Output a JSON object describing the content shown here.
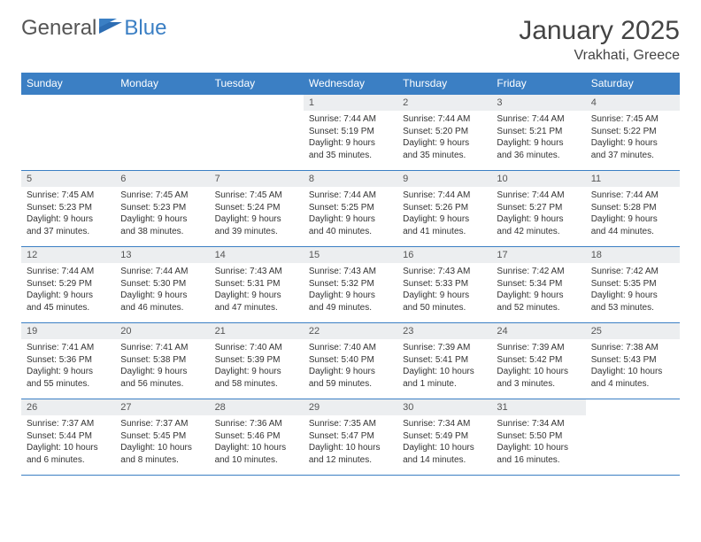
{
  "logo": {
    "general": "General",
    "blue": "Blue"
  },
  "title": "January 2025",
  "location": "Vrakhati, Greece",
  "colors": {
    "header_bg": "#3b7fc4",
    "daynum_bg": "#eceef0",
    "border": "#3b7fc4"
  },
  "day_headers": [
    "Sunday",
    "Monday",
    "Tuesday",
    "Wednesday",
    "Thursday",
    "Friday",
    "Saturday"
  ],
  "weeks": [
    [
      null,
      null,
      null,
      {
        "n": "1",
        "sunrise": "7:44 AM",
        "sunset": "5:19 PM",
        "dl1": "9 hours",
        "dl2": "and 35 minutes."
      },
      {
        "n": "2",
        "sunrise": "7:44 AM",
        "sunset": "5:20 PM",
        "dl1": "9 hours",
        "dl2": "and 35 minutes."
      },
      {
        "n": "3",
        "sunrise": "7:44 AM",
        "sunset": "5:21 PM",
        "dl1": "9 hours",
        "dl2": "and 36 minutes."
      },
      {
        "n": "4",
        "sunrise": "7:45 AM",
        "sunset": "5:22 PM",
        "dl1": "9 hours",
        "dl2": "and 37 minutes."
      }
    ],
    [
      {
        "n": "5",
        "sunrise": "7:45 AM",
        "sunset": "5:23 PM",
        "dl1": "9 hours",
        "dl2": "and 37 minutes."
      },
      {
        "n": "6",
        "sunrise": "7:45 AM",
        "sunset": "5:23 PM",
        "dl1": "9 hours",
        "dl2": "and 38 minutes."
      },
      {
        "n": "7",
        "sunrise": "7:45 AM",
        "sunset": "5:24 PM",
        "dl1": "9 hours",
        "dl2": "and 39 minutes."
      },
      {
        "n": "8",
        "sunrise": "7:44 AM",
        "sunset": "5:25 PM",
        "dl1": "9 hours",
        "dl2": "and 40 minutes."
      },
      {
        "n": "9",
        "sunrise": "7:44 AM",
        "sunset": "5:26 PM",
        "dl1": "9 hours",
        "dl2": "and 41 minutes."
      },
      {
        "n": "10",
        "sunrise": "7:44 AM",
        "sunset": "5:27 PM",
        "dl1": "9 hours",
        "dl2": "and 42 minutes."
      },
      {
        "n": "11",
        "sunrise": "7:44 AM",
        "sunset": "5:28 PM",
        "dl1": "9 hours",
        "dl2": "and 44 minutes."
      }
    ],
    [
      {
        "n": "12",
        "sunrise": "7:44 AM",
        "sunset": "5:29 PM",
        "dl1": "9 hours",
        "dl2": "and 45 minutes."
      },
      {
        "n": "13",
        "sunrise": "7:44 AM",
        "sunset": "5:30 PM",
        "dl1": "9 hours",
        "dl2": "and 46 minutes."
      },
      {
        "n": "14",
        "sunrise": "7:43 AM",
        "sunset": "5:31 PM",
        "dl1": "9 hours",
        "dl2": "and 47 minutes."
      },
      {
        "n": "15",
        "sunrise": "7:43 AM",
        "sunset": "5:32 PM",
        "dl1": "9 hours",
        "dl2": "and 49 minutes."
      },
      {
        "n": "16",
        "sunrise": "7:43 AM",
        "sunset": "5:33 PM",
        "dl1": "9 hours",
        "dl2": "and 50 minutes."
      },
      {
        "n": "17",
        "sunrise": "7:42 AM",
        "sunset": "5:34 PM",
        "dl1": "9 hours",
        "dl2": "and 52 minutes."
      },
      {
        "n": "18",
        "sunrise": "7:42 AM",
        "sunset": "5:35 PM",
        "dl1": "9 hours",
        "dl2": "and 53 minutes."
      }
    ],
    [
      {
        "n": "19",
        "sunrise": "7:41 AM",
        "sunset": "5:36 PM",
        "dl1": "9 hours",
        "dl2": "and 55 minutes."
      },
      {
        "n": "20",
        "sunrise": "7:41 AM",
        "sunset": "5:38 PM",
        "dl1": "9 hours",
        "dl2": "and 56 minutes."
      },
      {
        "n": "21",
        "sunrise": "7:40 AM",
        "sunset": "5:39 PM",
        "dl1": "9 hours",
        "dl2": "and 58 minutes."
      },
      {
        "n": "22",
        "sunrise": "7:40 AM",
        "sunset": "5:40 PM",
        "dl1": "9 hours",
        "dl2": "and 59 minutes."
      },
      {
        "n": "23",
        "sunrise": "7:39 AM",
        "sunset": "5:41 PM",
        "dl1": "10 hours",
        "dl2": "and 1 minute."
      },
      {
        "n": "24",
        "sunrise": "7:39 AM",
        "sunset": "5:42 PM",
        "dl1": "10 hours",
        "dl2": "and 3 minutes."
      },
      {
        "n": "25",
        "sunrise": "7:38 AM",
        "sunset": "5:43 PM",
        "dl1": "10 hours",
        "dl2": "and 4 minutes."
      }
    ],
    [
      {
        "n": "26",
        "sunrise": "7:37 AM",
        "sunset": "5:44 PM",
        "dl1": "10 hours",
        "dl2": "and 6 minutes."
      },
      {
        "n": "27",
        "sunrise": "7:37 AM",
        "sunset": "5:45 PM",
        "dl1": "10 hours",
        "dl2": "and 8 minutes."
      },
      {
        "n": "28",
        "sunrise": "7:36 AM",
        "sunset": "5:46 PM",
        "dl1": "10 hours",
        "dl2": "and 10 minutes."
      },
      {
        "n": "29",
        "sunrise": "7:35 AM",
        "sunset": "5:47 PM",
        "dl1": "10 hours",
        "dl2": "and 12 minutes."
      },
      {
        "n": "30",
        "sunrise": "7:34 AM",
        "sunset": "5:49 PM",
        "dl1": "10 hours",
        "dl2": "and 14 minutes."
      },
      {
        "n": "31",
        "sunrise": "7:34 AM",
        "sunset": "5:50 PM",
        "dl1": "10 hours",
        "dl2": "and 16 minutes."
      },
      null
    ]
  ],
  "labels": {
    "sunrise": "Sunrise:",
    "sunset": "Sunset:",
    "daylight": "Daylight:"
  }
}
